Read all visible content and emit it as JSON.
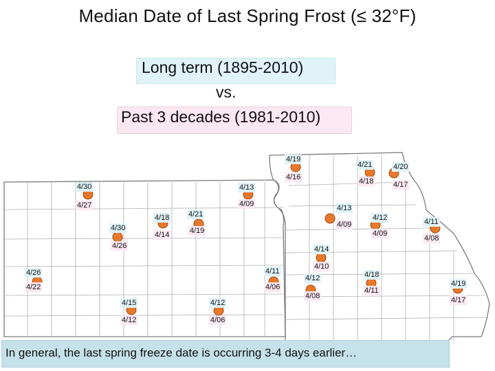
{
  "title": "Median Date of Last Spring Frost (≤ 32°F)",
  "long_term_label": "Long term (1895-2010)",
  "vs_label": "vs.",
  "past_label": "Past 3 decades (1981-2010)",
  "footer_note": "In general, the last spring freeze date is occurring 3-4 days earlier…",
  "colors": {
    "long_term_bg": "#dff3f8",
    "past_bg": "#fbe8f2",
    "station_marker": "#e8782a",
    "footer_bg": "#c5e1ea"
  },
  "stations": [
    {
      "long_term": "4/19",
      "past": "4/16"
    },
    {
      "long_term": "4/21",
      "past": "4/18"
    },
    {
      "long_term": "4/20",
      "past": "4/17"
    },
    {
      "long_term": "4/30",
      "past": "4/27"
    },
    {
      "long_term": "4/13",
      "past": "4/09"
    },
    {
      "long_term": "4/18",
      "past": "4/14"
    },
    {
      "long_term": "4/21",
      "past": "4/19"
    },
    {
      "long_term": "4/30",
      "past": "4/26"
    },
    {
      "long_term": "4/13",
      "past": "4/09"
    },
    {
      "long_term": "4/12",
      "past": "4/09"
    },
    {
      "long_term": "4/11",
      "past": "4/08"
    },
    {
      "long_term": "4/14",
      "past": "4/10"
    },
    {
      "long_term": "4/26",
      "past": "4/22"
    },
    {
      "long_term": "4/11",
      "past": "4/06"
    },
    {
      "long_term": "4/12",
      "past": "4/08"
    },
    {
      "long_term": "4/18",
      "past": "4/11"
    },
    {
      "long_term": "4/19",
      "past": "4/17"
    },
    {
      "long_term": "4/15",
      "past": "4/12"
    },
    {
      "long_term": "4/12",
      "past": "4/06"
    }
  ]
}
